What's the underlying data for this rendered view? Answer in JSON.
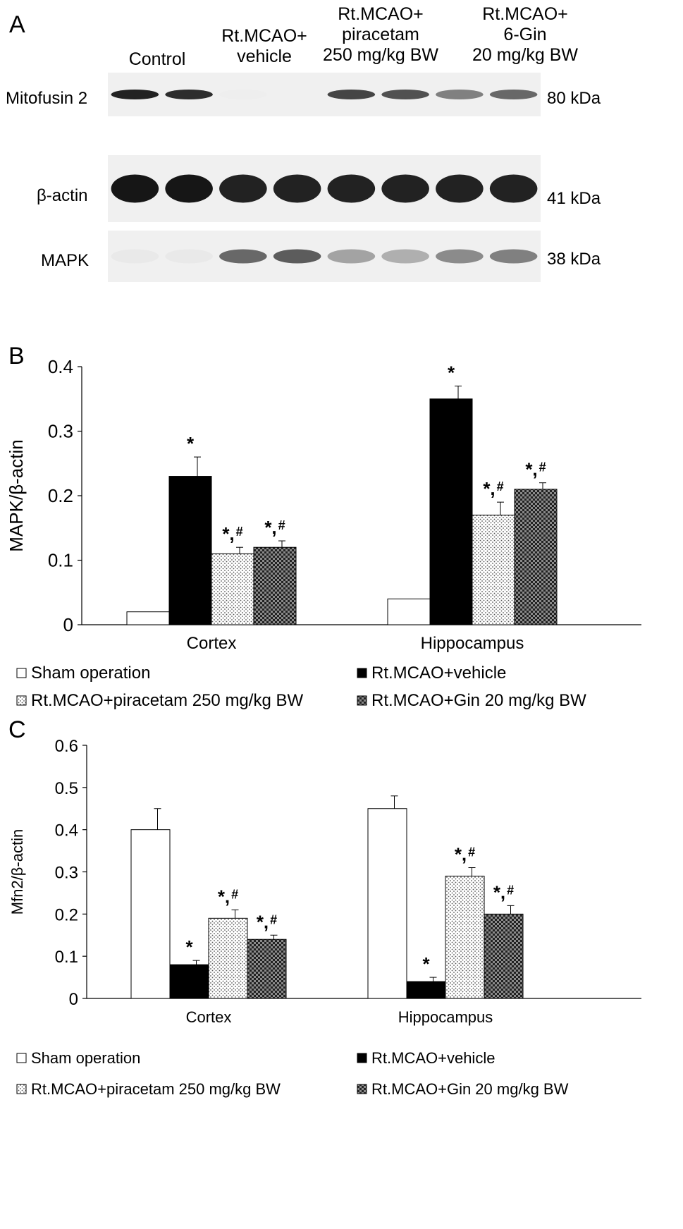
{
  "panel_a": {
    "letter": "A",
    "lane_groups": [
      {
        "lines": [
          "Control"
        ]
      },
      {
        "lines": [
          "Rt.MCAO+",
          "vehicle"
        ]
      },
      {
        "lines": [
          "Rt.MCAO+",
          "piracetam",
          "250 mg/kg BW"
        ]
      },
      {
        "lines": [
          "Rt.MCAO+",
          "6-Gin",
          "20 mg/kg BW"
        ]
      }
    ],
    "rows": [
      {
        "protein": "Mitofusin 2",
        "size": "80 kDa",
        "band_intensity": [
          0.9,
          0.85,
          0.03,
          0.02,
          0.75,
          0.7,
          0.5,
          0.6
        ]
      },
      {
        "protein": "β-actin",
        "size": "41 kDa",
        "band_intensity": [
          0.95,
          0.95,
          0.9,
          0.9,
          0.9,
          0.9,
          0.9,
          0.9
        ]
      },
      {
        "protein": "MAPK",
        "size": "38 kDa",
        "band_intensity": [
          0.05,
          0.05,
          0.6,
          0.65,
          0.35,
          0.3,
          0.45,
          0.5
        ]
      }
    ]
  },
  "chart_data": [
    {
      "panel": "B",
      "type": "bar",
      "title": "",
      "ylabel": "MAPK/β-actin",
      "xlabel": "",
      "ylim": [
        0,
        0.4
      ],
      "yticks": [
        "0",
        "0.1",
        "0.2",
        "0.3",
        "0.4"
      ],
      "ytick_values": [
        0,
        0.1,
        0.2,
        0.3,
        0.4
      ],
      "categories": [
        "Cortex",
        "Hippocampus"
      ],
      "series": [
        {
          "name": "Sham operation",
          "fill": "white",
          "values": [
            0.02,
            0.04
          ],
          "errors": [
            0,
            0
          ],
          "marks": [
            "",
            ""
          ]
        },
        {
          "name": "Rt.MCAO+vehicle",
          "fill": "black",
          "values": [
            0.23,
            0.35
          ],
          "errors": [
            0.03,
            0.02
          ],
          "marks": [
            "*",
            "*"
          ]
        },
        {
          "name": "Rt.MCAO+piracetam  250 mg/kg BW",
          "fill": "dots",
          "values": [
            0.11,
            0.17
          ],
          "errors": [
            0.01,
            0.02
          ],
          "marks": [
            "*,#",
            "*,#"
          ]
        },
        {
          "name": "Rt.MCAO+Gin 20 mg/kg BW",
          "fill": "checker",
          "values": [
            0.12,
            0.21
          ],
          "errors": [
            0.01,
            0.01
          ],
          "marks": [
            "*,#",
            "*,#"
          ]
        }
      ],
      "legend_position": "bottom",
      "grid": false
    },
    {
      "panel": "C",
      "type": "bar",
      "title": "",
      "ylabel": "Mfn2/β-actin",
      "xlabel": "",
      "ylim": [
        0,
        0.6
      ],
      "yticks": [
        "0",
        "0.1",
        "0.2",
        "0.3",
        "0.4",
        "0.5",
        "0.6"
      ],
      "ytick_values": [
        0,
        0.1,
        0.2,
        0.3,
        0.4,
        0.5,
        0.6
      ],
      "categories": [
        "Cortex",
        "Hippocampus"
      ],
      "series": [
        {
          "name": "Sham operation",
          "fill": "white",
          "values": [
            0.4,
            0.45
          ],
          "errors": [
            0.05,
            0.03
          ],
          "marks": [
            "",
            ""
          ]
        },
        {
          "name": "Rt.MCAO+vehicle",
          "fill": "black",
          "values": [
            0.08,
            0.04
          ],
          "errors": [
            0.01,
            0.01
          ],
          "marks": [
            "*",
            "*"
          ]
        },
        {
          "name": "Rt.MCAO+piracetam  250 mg/kg BW",
          "fill": "dots",
          "values": [
            0.19,
            0.29
          ],
          "errors": [
            0.02,
            0.02
          ],
          "marks": [
            "*,#",
            "*,#"
          ]
        },
        {
          "name": "Rt.MCAO+Gin 20 mg/kg BW",
          "fill": "checker",
          "values": [
            0.14,
            0.2
          ],
          "errors": [
            0.01,
            0.02
          ],
          "marks": [
            "*,#",
            "*,#"
          ]
        }
      ],
      "legend_position": "bottom",
      "grid": false
    }
  ]
}
